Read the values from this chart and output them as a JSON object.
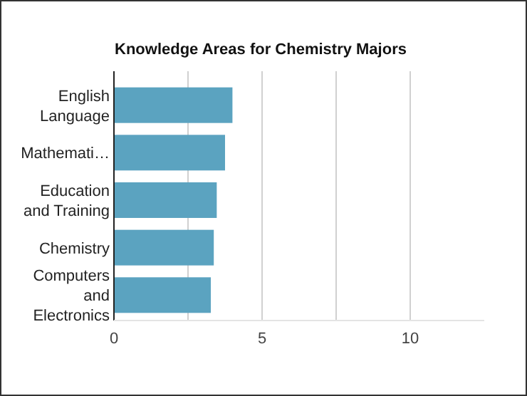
{
  "chart_data": {
    "type": "bar",
    "orientation": "horizontal",
    "title": "Knowledge Areas for Chemistry Majors",
    "categories": [
      "English Language",
      "Mathemati…",
      "Education and Training",
      "Chemistry",
      "Computers and Electronics"
    ],
    "values": [
      4.0,
      3.75,
      3.47,
      3.37,
      3.27
    ],
    "color": "#5ba3c0",
    "xlim": [
      0,
      12.5
    ],
    "xticks": [
      0,
      {
        "value": 2.5,
        "label": null
      },
      5,
      {
        "value": 7.5,
        "label": null
      },
      10
    ],
    "grid": "x"
  }
}
